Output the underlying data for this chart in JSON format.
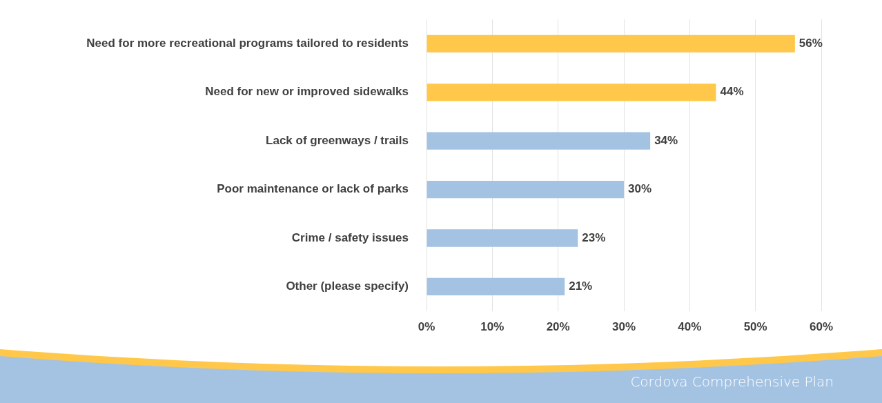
{
  "chart_data": {
    "type": "bar",
    "orientation": "horizontal",
    "categories": [
      "Need for more recreational programs tailored to residents",
      "Need for new or improved sidewalks",
      "Lack of greenways / trails",
      "Poor maintenance or lack of parks",
      "Crime / safety issues",
      "Other (please specify)"
    ],
    "values": [
      56,
      44,
      34,
      30,
      23,
      21
    ],
    "value_labels": [
      "56%",
      "44%",
      "34%",
      "30%",
      "23%",
      "21%"
    ],
    "colors": [
      "#ffc84a",
      "#ffc84a",
      "#a4c3e2",
      "#a4c3e2",
      "#a4c3e2",
      "#a4c3e2"
    ],
    "xlim": [
      0,
      60
    ],
    "xticks": [
      {
        "value": 0,
        "label": "0%"
      },
      {
        "value": 10,
        "label": "10%"
      },
      {
        "value": 20,
        "label": "20%"
      },
      {
        "value": 30,
        "label": "30%"
      },
      {
        "value": 40,
        "label": "40%"
      },
      {
        "value": 50,
        "label": "50%"
      },
      {
        "value": 60,
        "label": "60%"
      }
    ],
    "grid": "x",
    "legend": false,
    "annotations": [
      "Cordova Comprehensive Plan"
    ]
  }
}
